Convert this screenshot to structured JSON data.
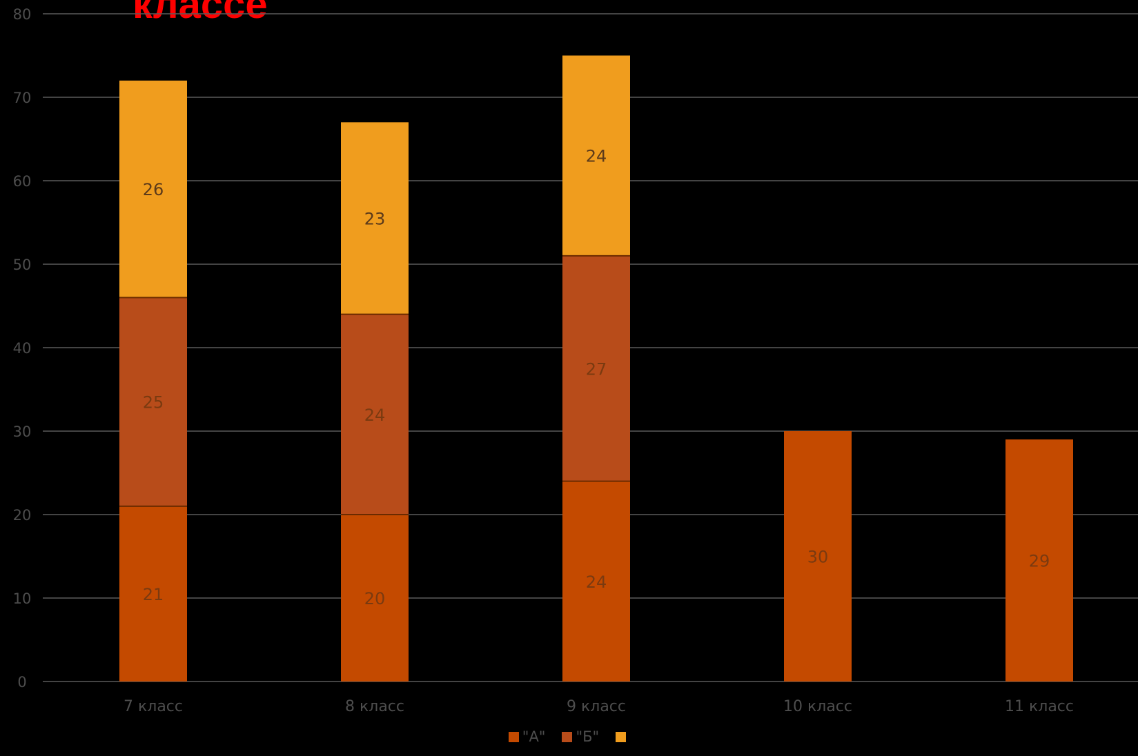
{
  "chart_data": {
    "type": "bar",
    "stacked": true,
    "title": "классе",
    "categories": [
      "7 класс",
      "8 класс",
      "9 класс",
      "10 класс",
      "11 класс"
    ],
    "series": [
      {
        "name": "\"А\"",
        "color": "#c44a00",
        "values": [
          21,
          20,
          24,
          30,
          29
        ]
      },
      {
        "name": "\"Б\"",
        "color": "#b84c1a",
        "values": [
          25,
          24,
          27,
          null,
          null
        ]
      },
      {
        "name": "",
        "color": "#f09d1e",
        "values": [
          26,
          23,
          24,
          null,
          null
        ]
      }
    ],
    "ylim": [
      0,
      80
    ],
    "yticks": [
      0,
      10,
      20,
      30,
      40,
      50,
      60,
      70,
      80
    ],
    "grid": true,
    "legend_position": "bottom",
    "colors": {
      "background": "#000000",
      "gridline": "#5a5a5a",
      "tick_text": "#4d4d4d",
      "title": "#ff0000",
      "data_label_light": "#7a3a10",
      "data_label_dark": "#5c3a1a"
    }
  }
}
